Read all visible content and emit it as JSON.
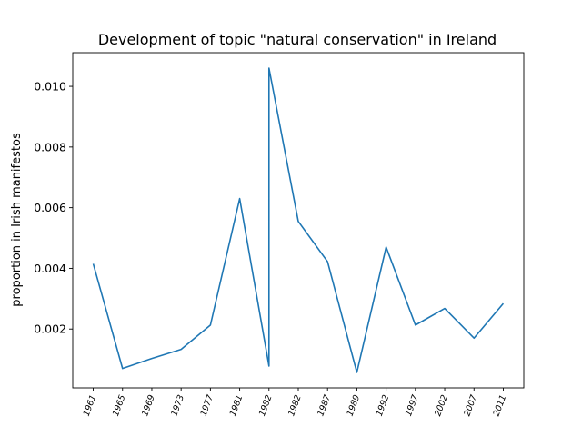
{
  "chart_data": {
    "type": "line",
    "title": "Development of topic \"natural conservation\" in Ireland",
    "xlabel": "",
    "ylabel": "proportion in Irish manifestos",
    "categories": [
      "1961",
      "1965",
      "1969",
      "1973",
      "1977",
      "1981",
      "1982",
      "1982",
      "1987",
      "1989",
      "1992",
      "1997",
      "2002",
      "2007",
      "2011"
    ],
    "series": [
      {
        "color": "#1f77b4",
        "x": [
          0,
          1,
          2,
          3,
          4,
          5,
          6,
          6,
          7,
          8,
          9,
          10,
          11,
          12,
          13,
          14
        ],
        "values": [
          0.00415,
          0.0007,
          0.00103,
          0.00133,
          0.00213,
          0.0063,
          0.00078,
          0.0106,
          0.00555,
          0.00422,
          0.00057,
          0.0047,
          0.00213,
          0.00268,
          0.0017,
          0.00284
        ]
      }
    ],
    "yticks": [
      0.002,
      0.004,
      0.006,
      0.008,
      0.01
    ],
    "ytick_labels": [
      "0.002",
      "0.004",
      "0.006",
      "0.008",
      "0.010"
    ],
    "ylim": [
      6e-05,
      0.01111
    ],
    "xlim": [
      -0.7,
      14.7
    ],
    "grid": false,
    "xtick_rotation": -70
  }
}
